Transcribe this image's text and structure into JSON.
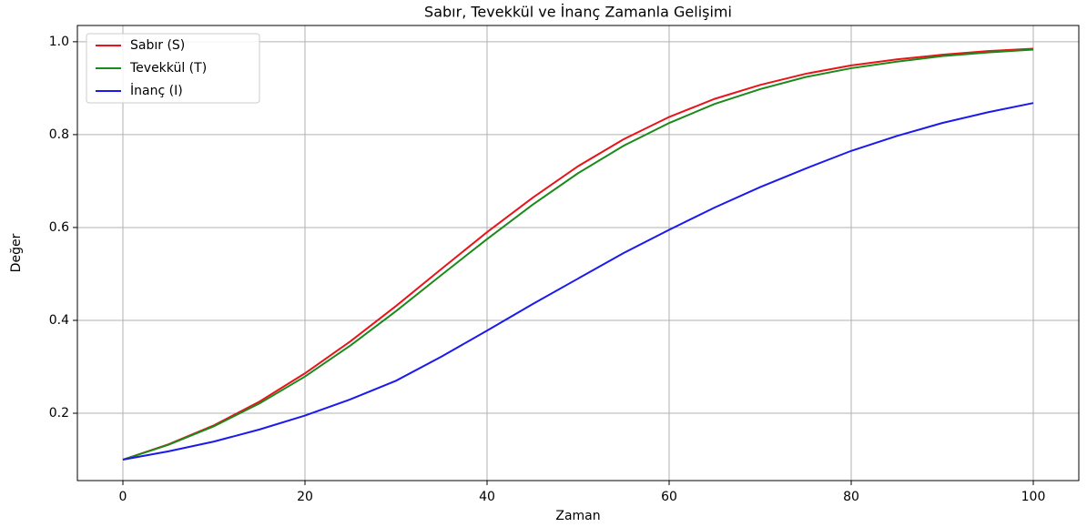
{
  "chart_data": {
    "type": "line",
    "title": "Sabır, Tevekkül ve İnanç Zamanla Gelişimi",
    "xlabel": "Zaman",
    "ylabel": "Değer",
    "x": [
      0,
      5,
      10,
      15,
      20,
      25,
      30,
      35,
      40,
      45,
      50,
      55,
      60,
      65,
      70,
      75,
      80,
      85,
      90,
      95,
      100
    ],
    "series": [
      {
        "name": "Sabır (S)",
        "color": "#e8141a",
        "values": [
          0.1,
          0.133,
          0.174,
          0.225,
          0.286,
          0.355,
          0.431,
          0.511,
          0.59,
          0.664,
          0.732,
          0.79,
          0.838,
          0.877,
          0.907,
          0.931,
          0.949,
          0.962,
          0.972,
          0.98,
          0.985
        ]
      },
      {
        "name": "Tevekkül (T)",
        "color": "#1a8a1a",
        "values": [
          0.1,
          0.132,
          0.172,
          0.221,
          0.279,
          0.346,
          0.42,
          0.498,
          0.575,
          0.649,
          0.717,
          0.776,
          0.825,
          0.866,
          0.898,
          0.924,
          0.943,
          0.957,
          0.969,
          0.977,
          0.983
        ]
      },
      {
        "name": "İnanç (I)",
        "color": "#1a1aee",
        "values": [
          0.1,
          0.118,
          0.139,
          0.165,
          0.195,
          0.23,
          0.27,
          0.322,
          0.378,
          0.435,
          0.49,
          0.545,
          0.595,
          0.643,
          0.687,
          0.727,
          0.765,
          0.797,
          0.825,
          0.848,
          0.868
        ]
      }
    ],
    "xlim": [
      -5,
      105
    ],
    "xticks": [
      0,
      20,
      40,
      60,
      80,
      100
    ],
    "ylim": [
      0.055,
      1.035
    ],
    "yticks": [
      0.2,
      0.4,
      0.6,
      0.8,
      1.0
    ],
    "grid": true,
    "legend": "upper left"
  }
}
